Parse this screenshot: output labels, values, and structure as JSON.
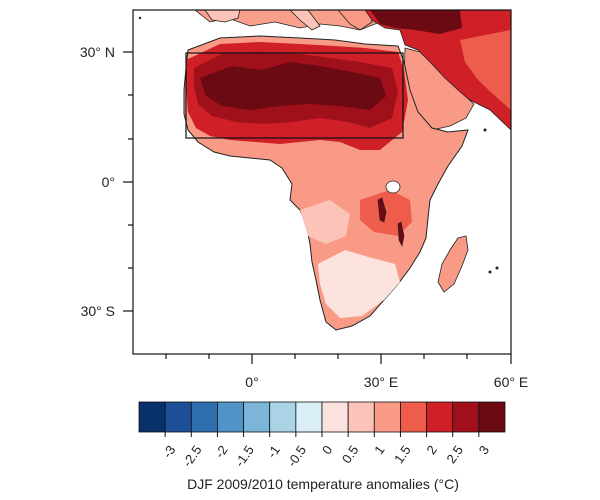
{
  "map": {
    "lat_ticks": [
      "30° N",
      "0°",
      "30° S"
    ],
    "lon_ticks": [
      "0°",
      "30° E",
      "60° E"
    ],
    "extent": {
      "lon": [
        -28,
        60
      ],
      "lat": [
        -40,
        40
      ]
    },
    "highlight_box": {
      "lon": [
        -15,
        36
      ],
      "lat": [
        11,
        30
      ]
    }
  },
  "colorbar": {
    "tick_labels": [
      "-3",
      "-2.5",
      "-2",
      "-1.5",
      "-1",
      "-0.5",
      "0",
      "0.5",
      "1",
      "1.5",
      "2",
      "2.5",
      "3"
    ],
    "colors": [
      "#08306b",
      "#1c4f96",
      "#2f6fb0",
      "#4f93c8",
      "#7bb6d8",
      "#aad4e6",
      "#d9eef6",
      "#fde3de",
      "#fcc3b8",
      "#f99a87",
      "#ee5c4c",
      "#cf2027",
      "#a0101a",
      "#6b0a12"
    ],
    "caption": "DJF 2009/2010 temperature anomalies (°C)"
  }
}
